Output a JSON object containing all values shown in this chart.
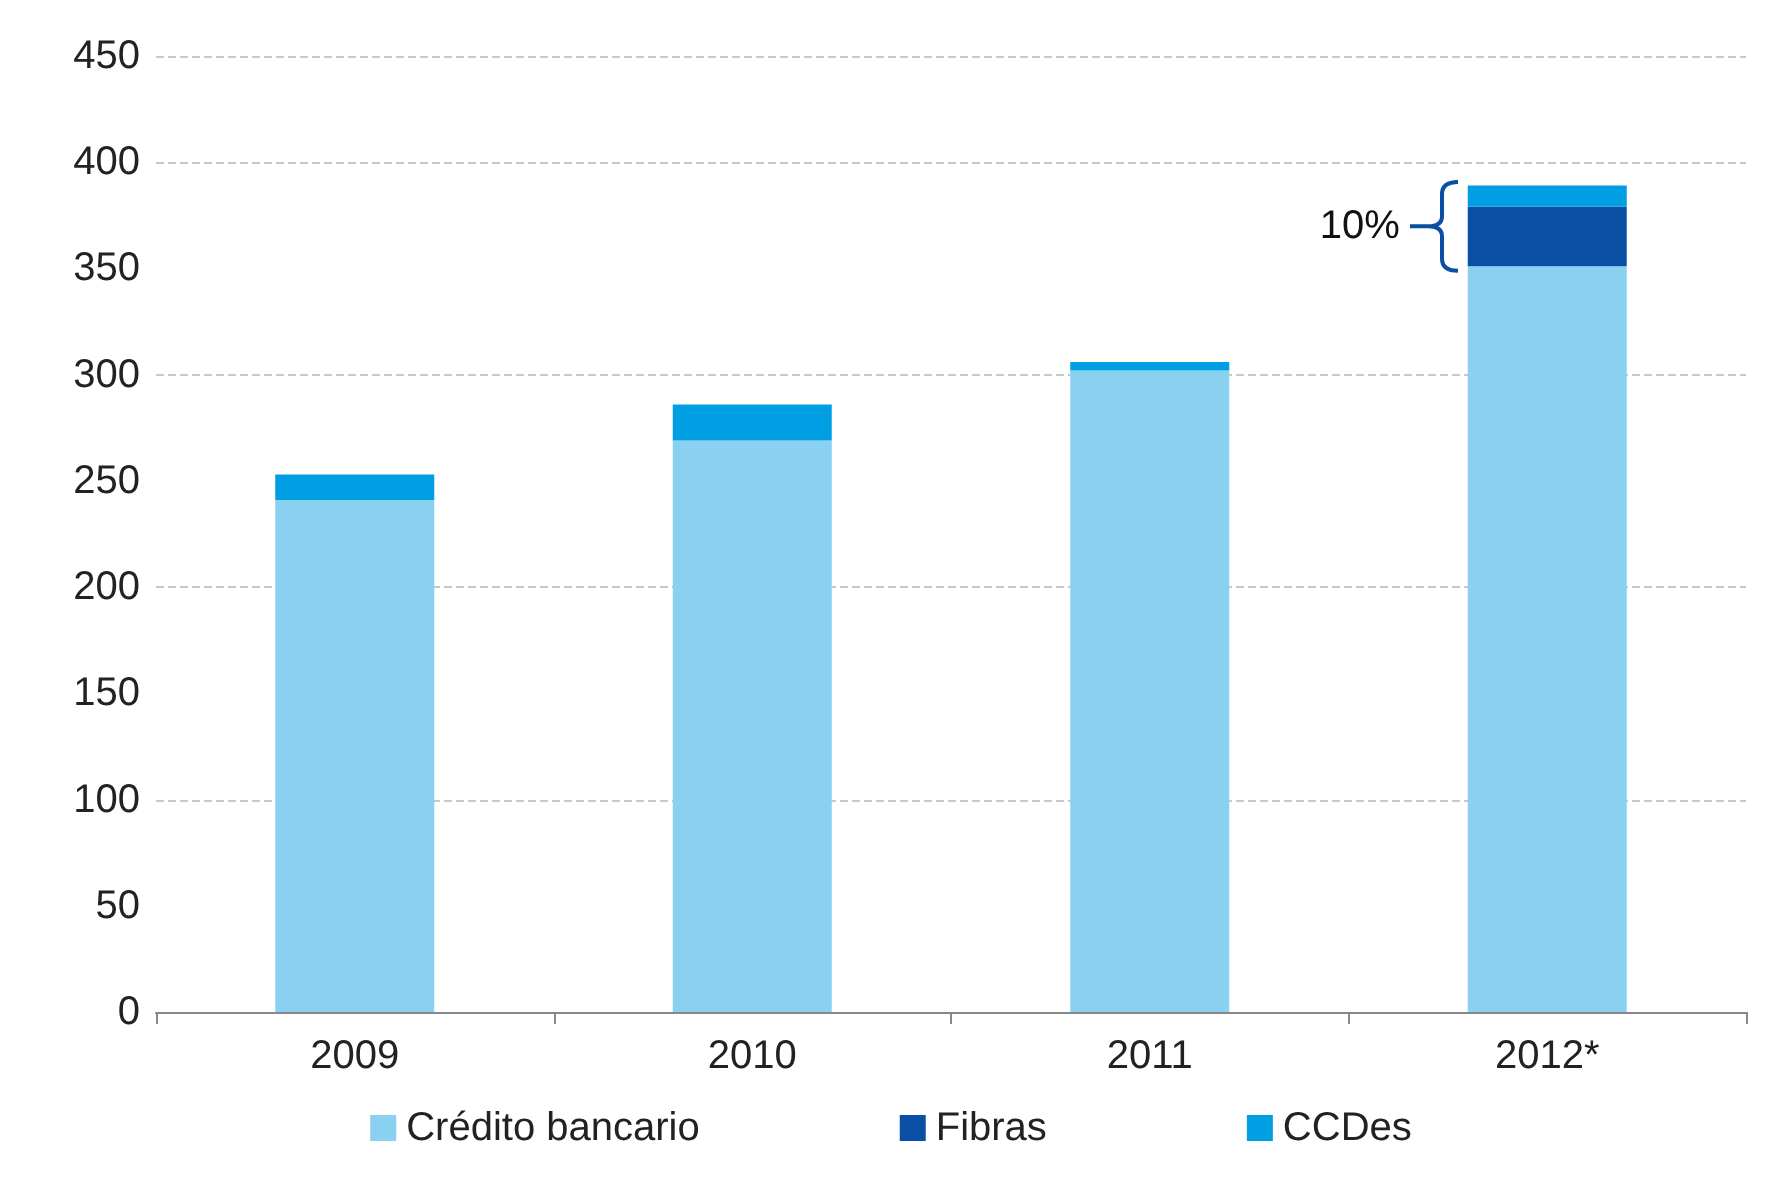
{
  "chart_data": {
    "type": "bar",
    "stacked": true,
    "categories": [
      "2009",
      "2010",
      "2011",
      "2012*"
    ],
    "series": [
      {
        "name": "Crédito bancario",
        "color": "#8ad0f0",
        "values": [
          241,
          269,
          302,
          351
        ]
      },
      {
        "name": "Fibras",
        "color": "#0a4fa3",
        "values": [
          null,
          null,
          null,
          28
        ]
      },
      {
        "name": "CCDes",
        "color": "#009fe3",
        "values": [
          12,
          17,
          4,
          10
        ]
      }
    ],
    "ylim": [
      0,
      450
    ],
    "yticks": [
      0,
      50,
      100,
      150,
      200,
      250,
      300,
      350,
      400,
      450
    ],
    "grid": "y",
    "legend": "bottom",
    "annotations": [
      "10%"
    ]
  }
}
